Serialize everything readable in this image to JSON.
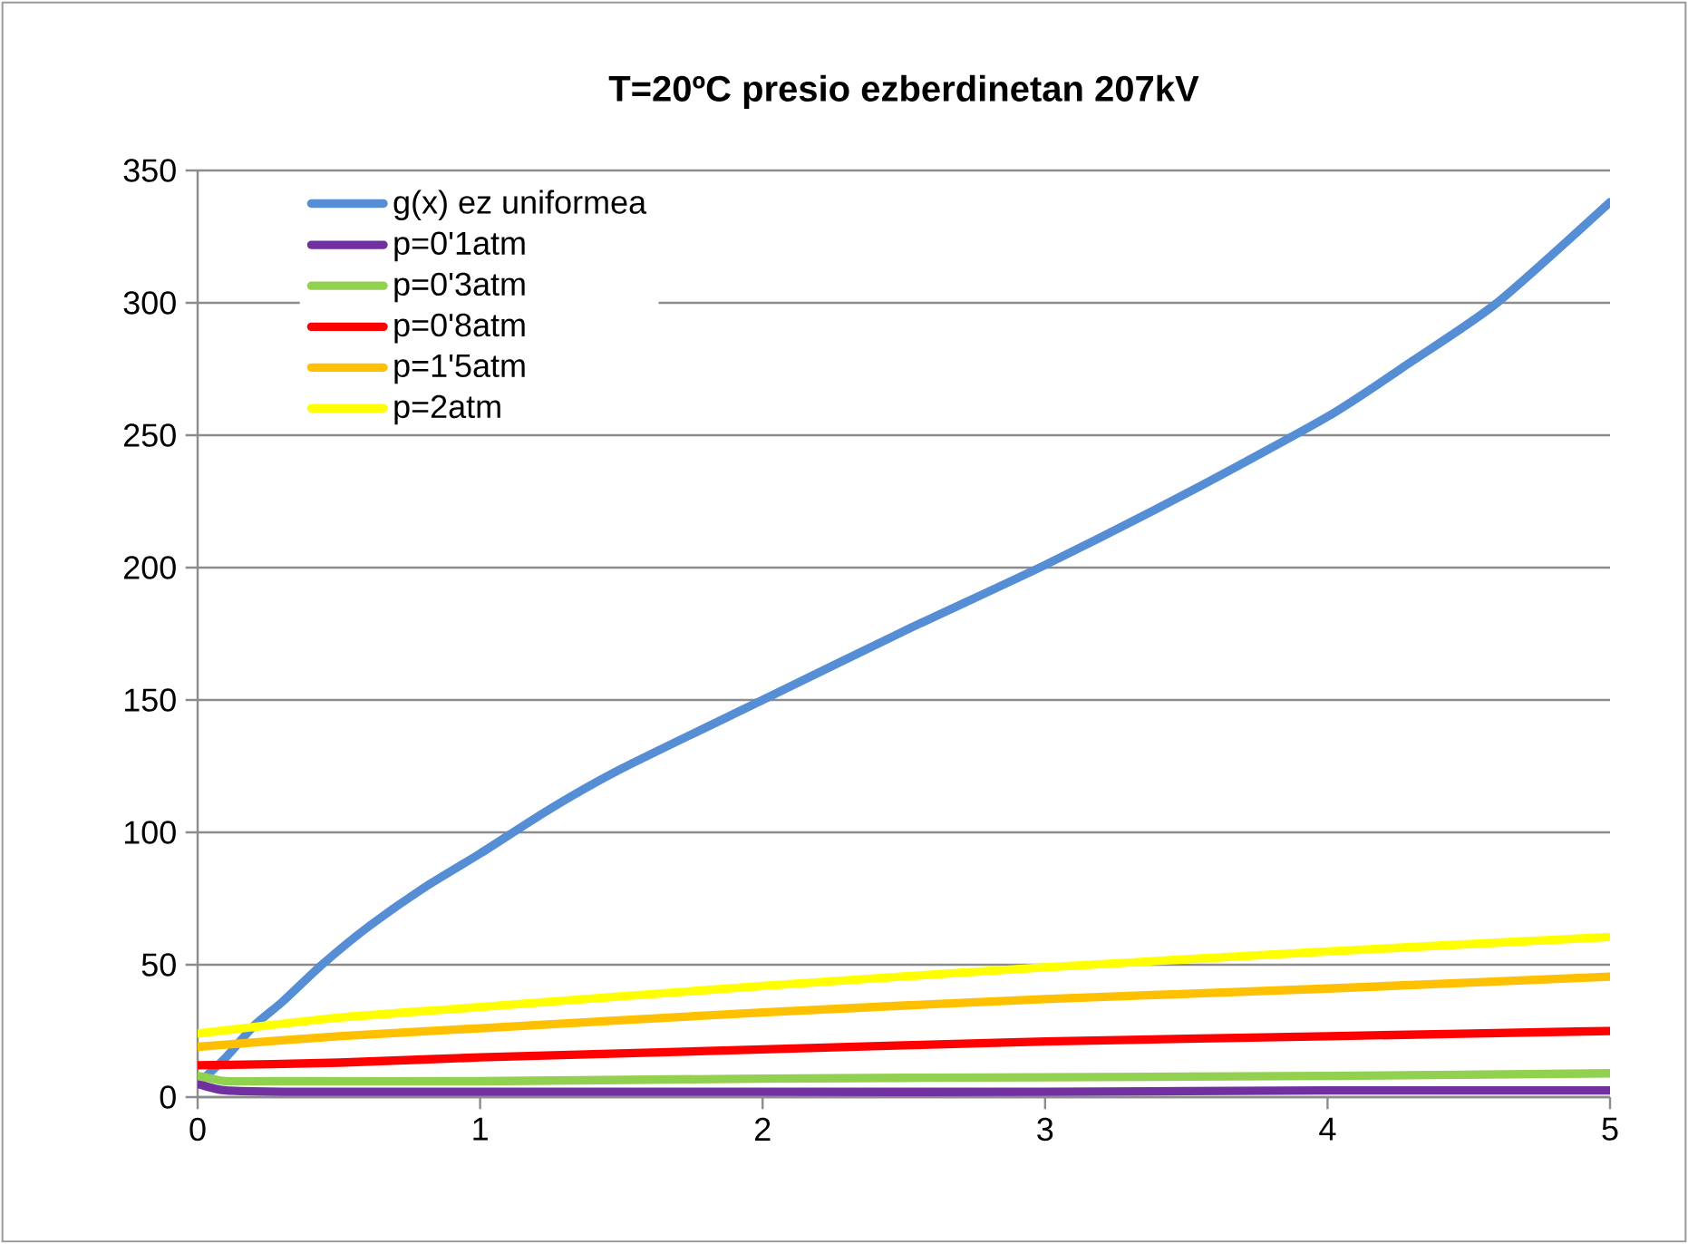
{
  "chart_data": {
    "type": "line",
    "title": "T=20ºC presio ezberdinetan 207kV",
    "series": [
      {
        "name": "g(x) ez uniformea",
        "color": "#558ed5",
        "x": [
          0,
          0.1,
          0.2,
          0.3,
          0.44,
          0.6,
          0.8,
          1,
          1.25,
          1.5,
          2,
          2.5,
          3,
          3.5,
          4,
          4.3,
          4.6,
          5
        ],
        "values": [
          5,
          15,
          27,
          36,
          50,
          64,
          79,
          92,
          109,
          124,
          150,
          176,
          201,
          228,
          257,
          278,
          300,
          338
        ]
      },
      {
        "name": "p=0'1atm",
        "color": "#7030a0",
        "x": [
          0,
          0.05,
          0.1,
          0.3,
          1,
          2,
          3,
          4,
          5
        ],
        "values": [
          5,
          3.5,
          2.5,
          2,
          2,
          2,
          2,
          2.5,
          2.5
        ]
      },
      {
        "name": "p=0'3atm",
        "color": "#92d050",
        "x": [
          0,
          0.05,
          0.1,
          0.3,
          1,
          2,
          3,
          4,
          5
        ],
        "values": [
          8,
          7,
          6,
          6,
          6,
          7,
          7.5,
          8,
          9
        ]
      },
      {
        "name": "p=0'8atm",
        "color": "#ff0000",
        "x": [
          0,
          0.5,
          1,
          2,
          3,
          4,
          5
        ],
        "values": [
          12,
          13,
          15,
          18,
          21,
          23,
          25
        ]
      },
      {
        "name": "p=1'5atm",
        "color": "#ffc000",
        "x": [
          0,
          0.5,
          1,
          2,
          3,
          4,
          5
        ],
        "values": [
          19,
          23,
          26,
          32,
          37,
          41,
          45.5
        ]
      },
      {
        "name": "p=2atm",
        "color": "#ffff00",
        "x": [
          0,
          0.5,
          1,
          2,
          3,
          4,
          5
        ],
        "values": [
          24,
          30,
          34,
          42,
          49,
          55,
          60.5
        ]
      }
    ],
    "xlim": [
      0,
      5
    ],
    "xticks": [
      0,
      1,
      2,
      3,
      4,
      5
    ],
    "ylim": [
      0,
      350
    ],
    "yticks": [
      0,
      50,
      100,
      150,
      200,
      250,
      300,
      350
    ],
    "grid": "y",
    "legend": "top left",
    "marker": "none",
    "line_style": "solid"
  }
}
